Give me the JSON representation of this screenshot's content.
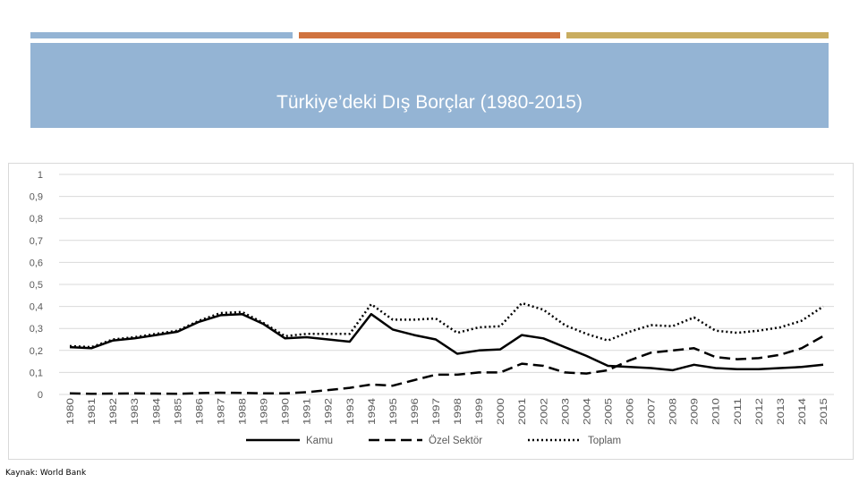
{
  "slide": {
    "title": "Türkiye’deki Dış Borçlar (1980-2015)",
    "source": "Kaynak: World Bank",
    "colors": {
      "banner": "#94b4d4",
      "bar1": "#94b4d4",
      "bar2": "#d0733f",
      "bar3": "#c9ad60",
      "text_on_banner": "#ffffff"
    }
  },
  "chart_data": {
    "type": "line",
    "title": "",
    "xlabel": "",
    "ylabel": "",
    "ylim": [
      0,
      1
    ],
    "yticks": [
      "0",
      "0,1",
      "0,2",
      "0,3",
      "0,4",
      "0,5",
      "0,6",
      "0,7",
      "0,8",
      "0,9",
      "1"
    ],
    "grid": true,
    "legend_position": "bottom",
    "x": [
      "1980",
      "1981",
      "1982",
      "1983",
      "1984",
      "1985",
      "1986",
      "1987",
      "1988",
      "1989",
      "1990",
      "1991",
      "1992",
      "1993",
      "1994",
      "1995",
      "1996",
      "1997",
      "1998",
      "1999",
      "2000",
      "2001",
      "2002",
      "2003",
      "2004",
      "2005",
      "2006",
      "2007",
      "2008",
      "2009",
      "2010",
      "2011",
      "2012",
      "2013",
      "2014",
      "2015"
    ],
    "series": [
      {
        "name": "Kamu",
        "style": "solid",
        "color": "#000000",
        "values": [
          0.215,
          0.21,
          0.245,
          0.255,
          0.27,
          0.285,
          0.33,
          0.36,
          0.365,
          0.32,
          0.255,
          0.26,
          0.25,
          0.24,
          0.365,
          0.295,
          0.27,
          0.25,
          0.185,
          0.2,
          0.205,
          0.27,
          0.255,
          0.215,
          0.175,
          0.13,
          0.125,
          0.12,
          0.11,
          0.135,
          0.12,
          0.115,
          0.115,
          0.12,
          0.125,
          0.135
        ]
      },
      {
        "name": "Özel Sektör",
        "style": "dashed",
        "color": "#000000",
        "values": [
          0.005,
          0.003,
          0.004,
          0.005,
          0.004,
          0.003,
          0.006,
          0.008,
          0.007,
          0.005,
          0.005,
          0.01,
          0.02,
          0.03,
          0.045,
          0.04,
          0.065,
          0.09,
          0.09,
          0.1,
          0.1,
          0.14,
          0.13,
          0.1,
          0.095,
          0.11,
          0.155,
          0.19,
          0.2,
          0.21,
          0.17,
          0.16,
          0.165,
          0.18,
          0.21,
          0.265
        ]
      },
      {
        "name": "Toplam",
        "style": "dotted",
        "color": "#000000",
        "values": [
          0.22,
          0.215,
          0.25,
          0.26,
          0.275,
          0.29,
          0.335,
          0.37,
          0.375,
          0.325,
          0.265,
          0.275,
          0.275,
          0.275,
          0.41,
          0.34,
          0.34,
          0.345,
          0.28,
          0.305,
          0.31,
          0.415,
          0.385,
          0.315,
          0.275,
          0.245,
          0.285,
          0.315,
          0.31,
          0.35,
          0.29,
          0.28,
          0.29,
          0.305,
          0.335,
          0.4
        ]
      }
    ]
  }
}
